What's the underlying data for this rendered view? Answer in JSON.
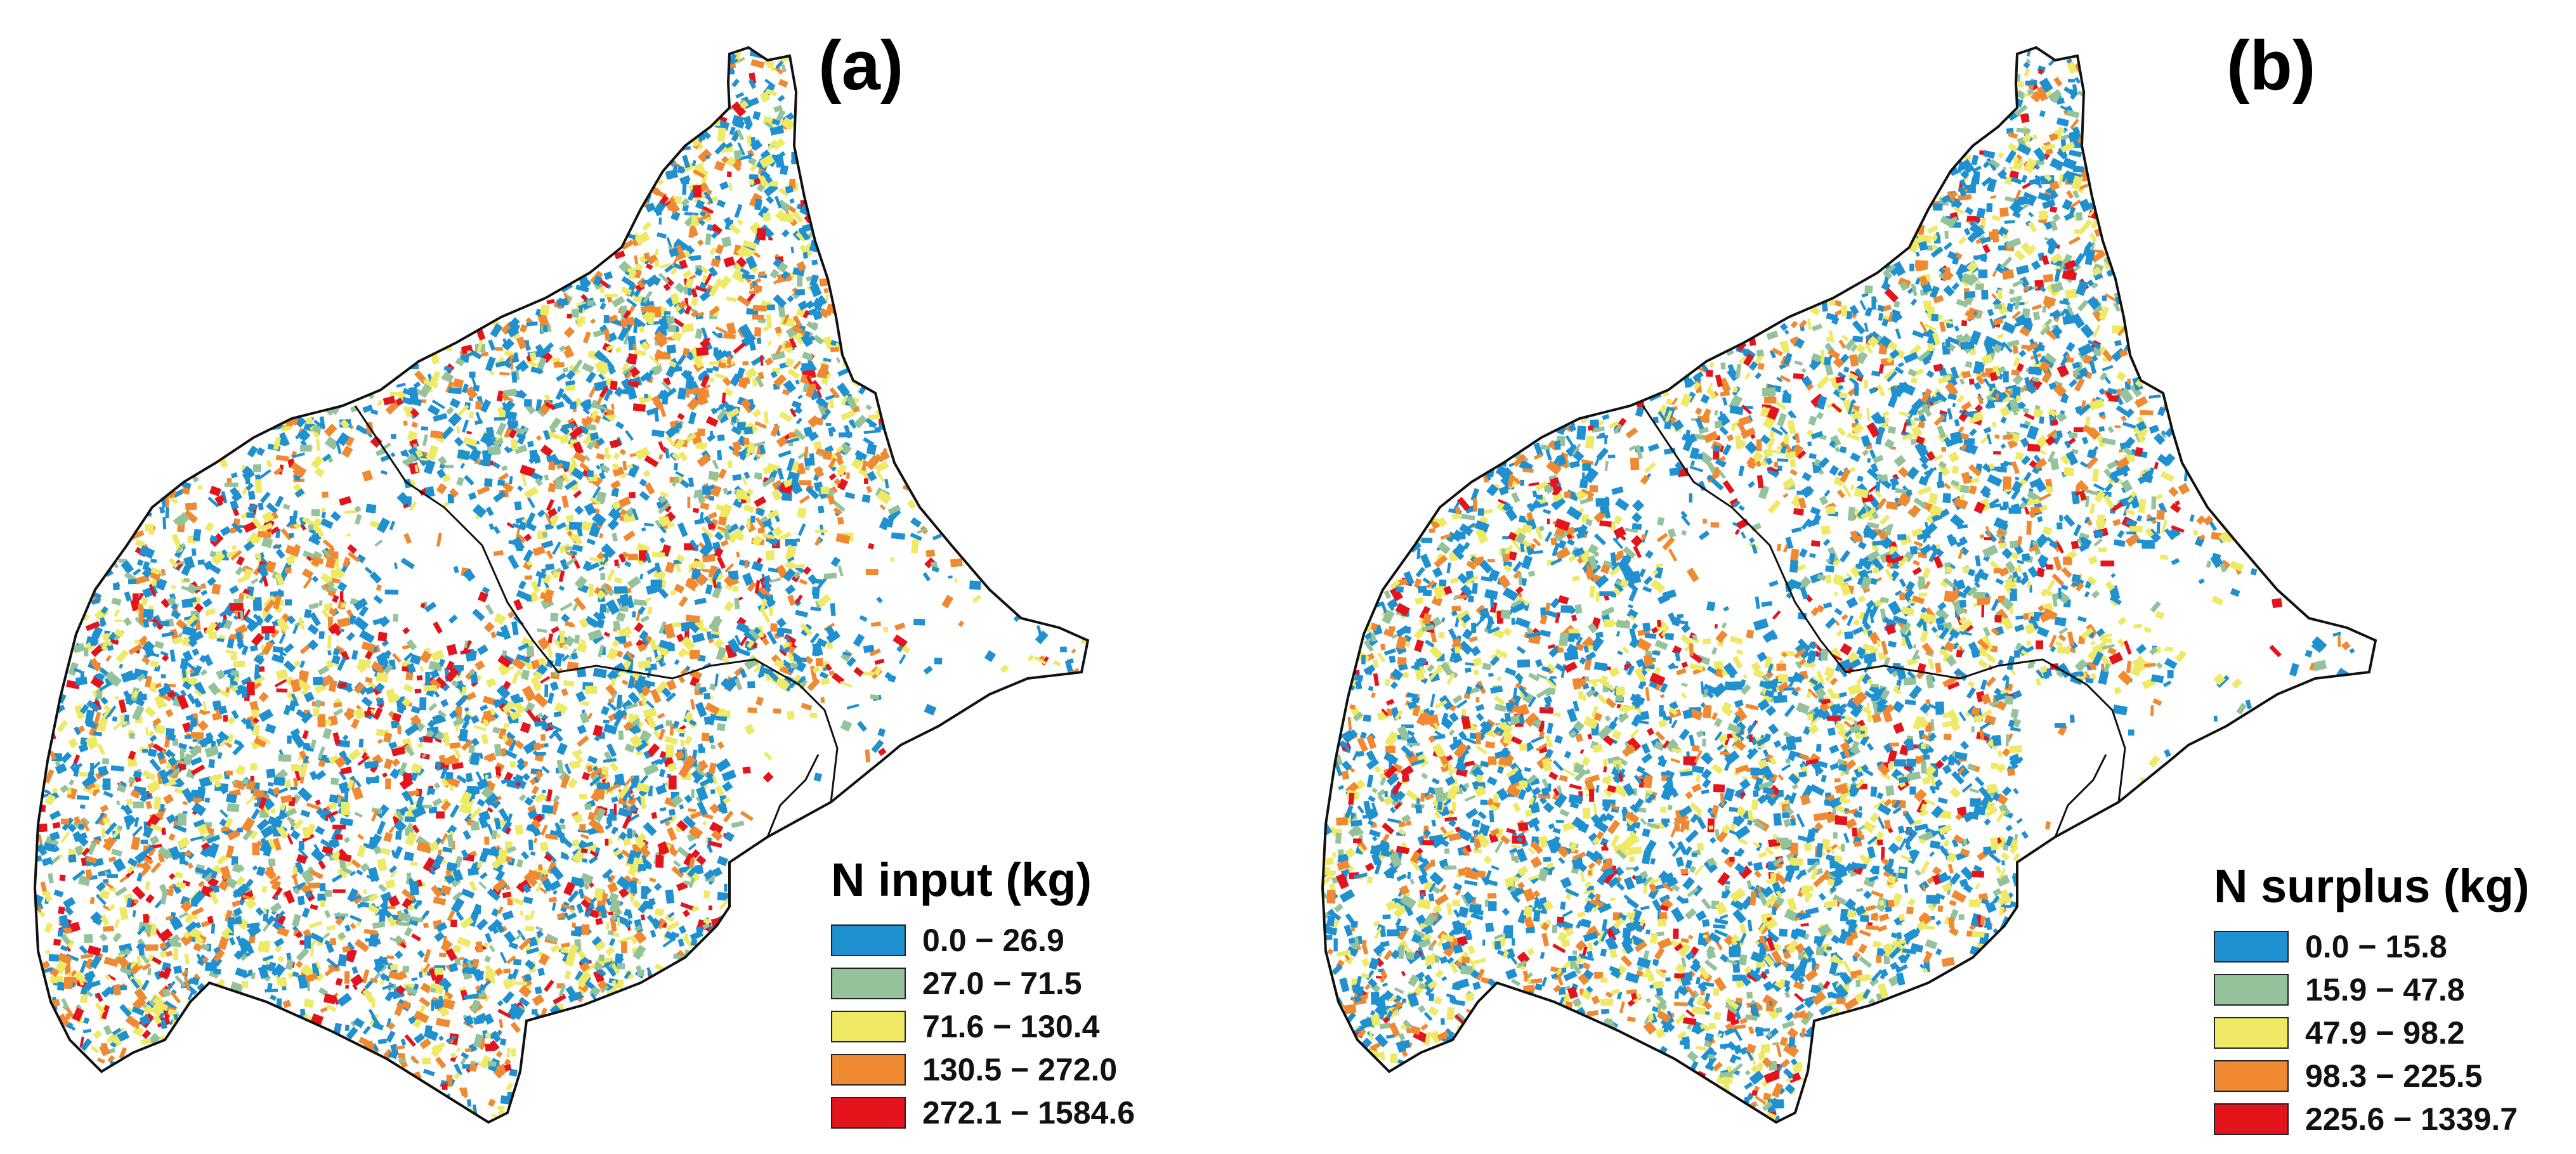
{
  "colors": {
    "class1": "#1f90d0",
    "class2": "#94c29a",
    "class3": "#eeea66",
    "class4": "#f08a32",
    "class5": "#e4141c",
    "boundary": "#111111"
  },
  "panels": [
    {
      "label": "(a)",
      "legend_title": "N input (kg)",
      "classes": [
        {
          "range": "0.0 − 26.9",
          "color": "#1f90d0"
        },
        {
          "range": "27.0 − 71.5",
          "color": "#94c29a"
        },
        {
          "range": "71.6 − 130.4",
          "color": "#eeea66"
        },
        {
          "range": "130.5 − 272.0",
          "color": "#f08a32"
        },
        {
          "range": "272.1 − 1584.6",
          "color": "#e4141c"
        }
      ],
      "class_weights": [
        0.4,
        0.12,
        0.2,
        0.2,
        0.08
      ]
    },
    {
      "label": "(b)",
      "legend_title": "N surplus (kg)",
      "classes": [
        {
          "range": "0.0 − 15.8",
          "color": "#1f90d0"
        },
        {
          "range": "15.9 − 47.8",
          "color": "#94c29a"
        },
        {
          "range": "47.9 − 98.2",
          "color": "#eeea66"
        },
        {
          "range": "98.3 − 225.5",
          "color": "#f08a32"
        },
        {
          "range": "225.6 − 1339.7",
          "color": "#e4141c"
        }
      ],
      "class_weights": [
        0.45,
        0.12,
        0.2,
        0.17,
        0.06
      ]
    }
  ]
}
